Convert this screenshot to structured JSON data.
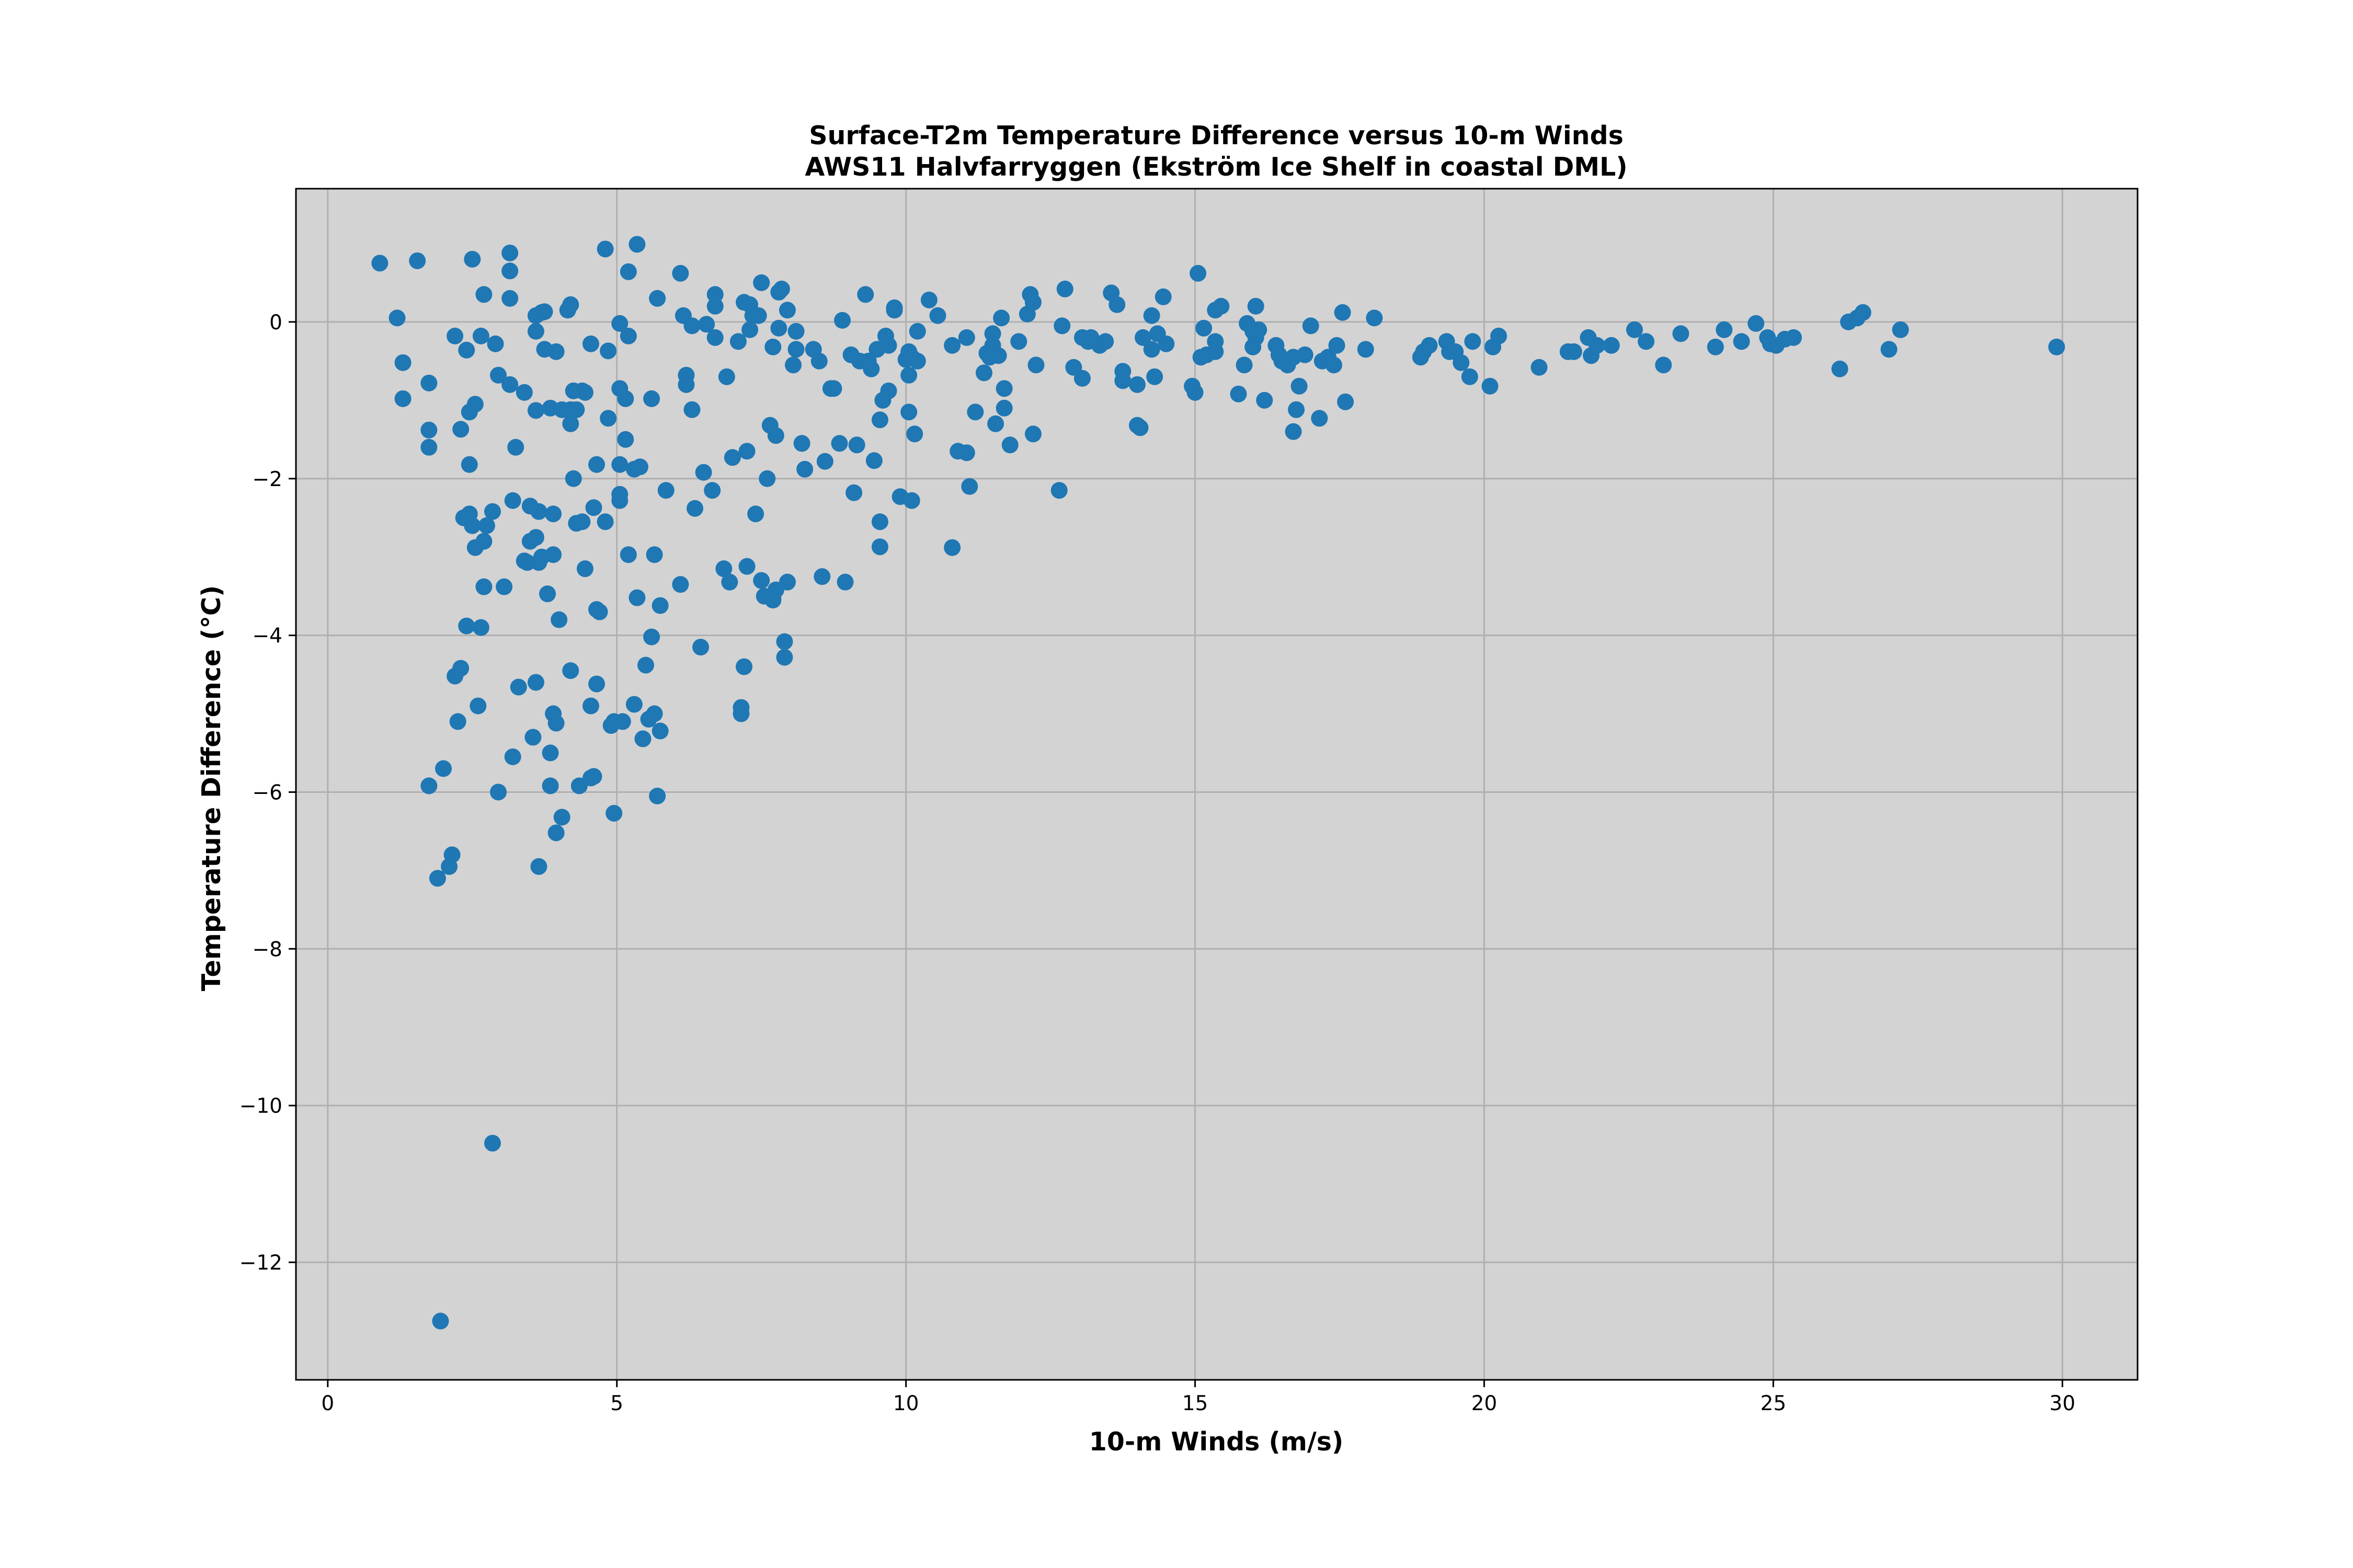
{
  "chart_data": {
    "type": "scatter",
    "title": "Surface-T2m Temperature Difference versus 10-m Winds",
    "subtitle": "AWS11 Halvfarryggen (Ekström Ice Shelf in coastal DML)",
    "xlabel": "10-m Winds (m/s)",
    "ylabel": "Temperature Difference (°C)",
    "xlim": [
      -0.55,
      31.3
    ],
    "ylim": [
      -13.5,
      1.7
    ],
    "xticks": [
      0,
      5,
      10,
      15,
      20,
      25,
      30
    ],
    "yticks": [
      0,
      -2,
      -4,
      -6,
      -8,
      -10,
      -12
    ],
    "xtick_labels": [
      "0",
      "5",
      "10",
      "15",
      "20",
      "25",
      "30"
    ],
    "ytick_labels": [
      "0",
      "−2",
      "−4",
      "−6",
      "−8",
      "−10",
      "−12"
    ],
    "grid": true,
    "colors": {
      "marker": "#1f77b4",
      "plot_background": "#d3d3d3",
      "grid": "#b0b0b0"
    },
    "points": [
      [
        0.9,
        0.75
      ],
      [
        1.2,
        0.05
      ],
      [
        1.3,
        -0.52
      ],
      [
        1.3,
        -0.98
      ],
      [
        1.55,
        0.78
      ],
      [
        1.75,
        -0.78
      ],
      [
        1.75,
        -1.38
      ],
      [
        1.75,
        -1.6
      ],
      [
        1.75,
        -5.92
      ],
      [
        1.9,
        -7.1
      ],
      [
        1.95,
        -12.75
      ],
      [
        2.0,
        -5.7
      ],
      [
        2.1,
        -6.95
      ],
      [
        2.15,
        -6.8
      ],
      [
        2.2,
        -4.52
      ],
      [
        2.2,
        -0.18
      ],
      [
        2.25,
        -5.1
      ],
      [
        2.3,
        -4.42
      ],
      [
        2.3,
        -1.37
      ],
      [
        2.35,
        -2.5
      ],
      [
        2.4,
        -0.36
      ],
      [
        2.4,
        -3.88
      ],
      [
        2.45,
        -1.15
      ],
      [
        2.45,
        -2.45
      ],
      [
        2.45,
        -1.82
      ],
      [
        2.5,
        -2.6
      ],
      [
        2.5,
        0.8
      ],
      [
        2.55,
        -1.05
      ],
      [
        2.55,
        -2.88
      ],
      [
        2.6,
        -4.9
      ],
      [
        2.65,
        -0.18
      ],
      [
        2.65,
        -3.9
      ],
      [
        2.7,
        -2.8
      ],
      [
        2.7,
        0.35
      ],
      [
        2.7,
        -3.38
      ],
      [
        2.75,
        -2.6
      ],
      [
        2.85,
        -2.42
      ],
      [
        2.85,
        -10.48
      ],
      [
        2.9,
        -0.28
      ],
      [
        2.95,
        -6.0
      ],
      [
        2.95,
        -0.68
      ],
      [
        3.05,
        -3.38
      ],
      [
        3.15,
        0.88
      ],
      [
        3.15,
        0.65
      ],
      [
        3.15,
        0.3
      ],
      [
        3.15,
        -0.8
      ],
      [
        3.2,
        -2.28
      ],
      [
        3.2,
        -5.55
      ],
      [
        3.25,
        -1.6
      ],
      [
        3.3,
        -4.66
      ],
      [
        3.4,
        -0.9
      ],
      [
        3.4,
        -3.05
      ],
      [
        3.45,
        -3.07
      ],
      [
        3.5,
        -2.35
      ],
      [
        3.5,
        -2.8
      ],
      [
        3.55,
        -5.3
      ],
      [
        3.6,
        0.08
      ],
      [
        3.6,
        -0.12
      ],
      [
        3.6,
        -2.75
      ],
      [
        3.6,
        -1.13
      ],
      [
        3.6,
        -4.6
      ],
      [
        3.65,
        -2.42
      ],
      [
        3.65,
        -6.95
      ],
      [
        3.65,
        -3.07
      ],
      [
        3.7,
        -3.0
      ],
      [
        3.7,
        0.12
      ],
      [
        3.75,
        0.13
      ],
      [
        3.75,
        -0.35
      ],
      [
        3.8,
        -3.47
      ],
      [
        3.85,
        -1.1
      ],
      [
        3.85,
        -5.92
      ],
      [
        3.85,
        -5.5
      ],
      [
        3.9,
        -2.45
      ],
      [
        3.9,
        -2.97
      ],
      [
        3.9,
        -5.0
      ],
      [
        3.95,
        -5.12
      ],
      [
        3.95,
        -6.52
      ],
      [
        3.95,
        -0.38
      ],
      [
        4.0,
        -3.8
      ],
      [
        4.05,
        -6.32
      ],
      [
        4.05,
        -1.12
      ],
      [
        4.15,
        0.15
      ],
      [
        4.2,
        0.22
      ],
      [
        4.2,
        -1.3
      ],
      [
        4.2,
        -1.12
      ],
      [
        4.2,
        -4.45
      ],
      [
        4.25,
        -2.0
      ],
      [
        4.25,
        -0.88
      ],
      [
        4.3,
        -1.12
      ],
      [
        4.3,
        -2.57
      ],
      [
        4.35,
        -5.92
      ],
      [
        4.4,
        -0.88
      ],
      [
        4.4,
        -2.55
      ],
      [
        4.45,
        -0.9
      ],
      [
        4.45,
        -3.15
      ],
      [
        4.55,
        -0.28
      ],
      [
        4.55,
        -4.9
      ],
      [
        4.55,
        -5.82
      ],
      [
        4.6,
        -2.37
      ],
      [
        4.6,
        -5.8
      ],
      [
        4.65,
        -1.82
      ],
      [
        4.65,
        -4.62
      ],
      [
        4.65,
        -3.67
      ],
      [
        4.7,
        -3.7
      ],
      [
        4.8,
        -2.55
      ],
      [
        4.8,
        0.93
      ],
      [
        4.85,
        -0.37
      ],
      [
        4.85,
        -1.23
      ],
      [
        4.9,
        -5.15
      ],
      [
        4.95,
        -6.27
      ],
      [
        4.95,
        -5.1
      ],
      [
        5.05,
        -0.02
      ],
      [
        5.05,
        -0.85
      ],
      [
        5.05,
        -2.2
      ],
      [
        5.05,
        -1.82
      ],
      [
        5.05,
        -2.28
      ],
      [
        5.1,
        -5.1
      ],
      [
        5.15,
        -1.5
      ],
      [
        5.15,
        -0.98
      ],
      [
        5.2,
        -0.18
      ],
      [
        5.2,
        0.64
      ],
      [
        5.2,
        -2.97
      ],
      [
        5.3,
        -1.88
      ],
      [
        5.3,
        -4.88
      ],
      [
        5.35,
        0.99
      ],
      [
        5.35,
        -3.52
      ],
      [
        5.4,
        -1.85
      ],
      [
        5.45,
        -5.32
      ],
      [
        5.5,
        -4.38
      ],
      [
        5.55,
        -5.07
      ],
      [
        5.6,
        -0.98
      ],
      [
        5.6,
        -4.02
      ],
      [
        5.65,
        -5.0
      ],
      [
        5.65,
        -2.97
      ],
      [
        5.7,
        0.3
      ],
      [
        5.7,
        -6.05
      ],
      [
        5.75,
        -5.22
      ],
      [
        5.75,
        -3.62
      ],
      [
        5.85,
        -2.15
      ],
      [
        6.1,
        0.62
      ],
      [
        6.1,
        -3.35
      ],
      [
        6.15,
        0.08
      ],
      [
        6.2,
        -0.8
      ],
      [
        6.2,
        -0.68
      ],
      [
        6.3,
        -1.12
      ],
      [
        6.3,
        -0.05
      ],
      [
        6.35,
        -2.38
      ],
      [
        6.45,
        -4.15
      ],
      [
        6.5,
        -1.92
      ],
      [
        6.55,
        -0.03
      ],
      [
        6.65,
        -2.15
      ],
      [
        6.7,
        0.35
      ],
      [
        6.7,
        0.2
      ],
      [
        6.7,
        -0.2
      ],
      [
        6.85,
        -3.15
      ],
      [
        6.9,
        -0.7
      ],
      [
        6.95,
        -3.32
      ],
      [
        7.0,
        -1.73
      ],
      [
        7.1,
        -0.25
      ],
      [
        7.15,
        -4.92
      ],
      [
        7.15,
        -5.0
      ],
      [
        7.2,
        0.25
      ],
      [
        7.2,
        -4.4
      ],
      [
        7.25,
        -3.12
      ],
      [
        7.25,
        -1.65
      ],
      [
        7.3,
        0.22
      ],
      [
        7.3,
        -0.1
      ],
      [
        7.35,
        0.08
      ],
      [
        7.4,
        -2.45
      ],
      [
        7.45,
        0.08
      ],
      [
        7.5,
        -3.3
      ],
      [
        7.5,
        0.5
      ],
      [
        7.55,
        -3.5
      ],
      [
        7.6,
        -2.0
      ],
      [
        7.65,
        -1.32
      ],
      [
        7.7,
        -0.32
      ],
      [
        7.7,
        -3.52
      ],
      [
        7.7,
        -3.55
      ],
      [
        7.75,
        -3.42
      ],
      [
        7.75,
        -1.45
      ],
      [
        7.8,
        -0.08
      ],
      [
        7.8,
        0.38
      ],
      [
        7.85,
        0.42
      ],
      [
        7.9,
        -4.08
      ],
      [
        7.9,
        -4.28
      ],
      [
        7.95,
        0.15
      ],
      [
        7.95,
        -3.32
      ],
      [
        8.05,
        -0.55
      ],
      [
        8.1,
        -0.35
      ],
      [
        8.1,
        -0.12
      ],
      [
        8.2,
        -1.55
      ],
      [
        8.25,
        -1.88
      ],
      [
        8.4,
        -0.35
      ],
      [
        8.5,
        -0.5
      ],
      [
        8.55,
        -3.25
      ],
      [
        8.6,
        -1.78
      ],
      [
        8.7,
        -0.85
      ],
      [
        8.75,
        -0.85
      ],
      [
        8.85,
        -1.55
      ],
      [
        8.9,
        0.02
      ],
      [
        8.95,
        -3.32
      ],
      [
        9.05,
        -0.42
      ],
      [
        9.1,
        -2.18
      ],
      [
        9.15,
        -1.57
      ],
      [
        9.2,
        -0.5
      ],
      [
        9.3,
        0.35
      ],
      [
        9.35,
        -0.5
      ],
      [
        9.4,
        -0.6
      ],
      [
        9.45,
        -1.77
      ],
      [
        9.5,
        -0.35
      ],
      [
        9.55,
        -2.55
      ],
      [
        9.55,
        -2.87
      ],
      [
        9.55,
        -1.25
      ],
      [
        9.6,
        -1.0
      ],
      [
        9.65,
        -0.18
      ],
      [
        9.7,
        -0.3
      ],
      [
        9.7,
        -0.88
      ],
      [
        9.8,
        0.18
      ],
      [
        9.8,
        0.15
      ],
      [
        9.9,
        -2.23
      ],
      [
        10.0,
        -0.48
      ],
      [
        10.05,
        -0.38
      ],
      [
        10.05,
        -0.68
      ],
      [
        10.05,
        -1.15
      ],
      [
        10.1,
        -0.45
      ],
      [
        10.1,
        -2.28
      ],
      [
        10.15,
        -1.43
      ],
      [
        10.2,
        -0.5
      ],
      [
        10.2,
        -0.12
      ],
      [
        10.4,
        0.28
      ],
      [
        10.55,
        0.08
      ],
      [
        10.8,
        -0.3
      ],
      [
        10.8,
        -2.88
      ],
      [
        10.9,
        -1.65
      ],
      [
        11.05,
        -0.2
      ],
      [
        11.05,
        -1.67
      ],
      [
        11.1,
        -2.1
      ],
      [
        11.2,
        -1.15
      ],
      [
        11.35,
        -0.65
      ],
      [
        11.4,
        -0.4
      ],
      [
        11.45,
        -0.45
      ],
      [
        11.5,
        -0.3
      ],
      [
        11.5,
        -0.15
      ],
      [
        11.55,
        -1.3
      ],
      [
        11.6,
        -0.43
      ],
      [
        11.65,
        0.05
      ],
      [
        11.7,
        -0.85
      ],
      [
        11.7,
        -1.1
      ],
      [
        11.8,
        -1.57
      ],
      [
        11.95,
        -0.25
      ],
      [
        12.1,
        0.1
      ],
      [
        12.15,
        0.35
      ],
      [
        12.2,
        0.25
      ],
      [
        12.2,
        -1.43
      ],
      [
        12.25,
        -0.55
      ],
      [
        12.65,
        -2.15
      ],
      [
        12.7,
        -0.05
      ],
      [
        12.75,
        0.42
      ],
      [
        12.9,
        -0.58
      ],
      [
        13.05,
        -0.2
      ],
      [
        13.05,
        -0.72
      ],
      [
        13.15,
        -0.25
      ],
      [
        13.2,
        -0.2
      ],
      [
        13.35,
        -0.3
      ],
      [
        13.45,
        -0.25
      ],
      [
        13.55,
        0.37
      ],
      [
        13.65,
        0.22
      ],
      [
        13.75,
        -0.75
      ],
      [
        13.75,
        -0.63
      ],
      [
        14.0,
        -0.8
      ],
      [
        14.0,
        -1.32
      ],
      [
        14.05,
        -1.35
      ],
      [
        14.1,
        -0.2
      ],
      [
        14.25,
        -0.35
      ],
      [
        14.25,
        0.08
      ],
      [
        14.3,
        -0.7
      ],
      [
        14.35,
        -0.15
      ],
      [
        14.45,
        0.32
      ],
      [
        14.5,
        -0.28
      ],
      [
        14.95,
        -0.82
      ],
      [
        15.0,
        -0.9
      ],
      [
        15.05,
        0.62
      ],
      [
        15.1,
        -0.45
      ],
      [
        15.15,
        -0.08
      ],
      [
        15.2,
        -0.42
      ],
      [
        15.35,
        -0.38
      ],
      [
        15.35,
        0.15
      ],
      [
        15.35,
        -0.25
      ],
      [
        15.45,
        0.2
      ],
      [
        15.75,
        -0.92
      ],
      [
        15.85,
        -0.55
      ],
      [
        15.9,
        -0.02
      ],
      [
        16.0,
        -0.12
      ],
      [
        16.0,
        -0.32
      ],
      [
        16.05,
        0.2
      ],
      [
        16.05,
        -0.2
      ],
      [
        16.1,
        -0.1
      ],
      [
        16.2,
        -1.0
      ],
      [
        16.4,
        -0.3
      ],
      [
        16.45,
        -0.42
      ],
      [
        16.5,
        -0.5
      ],
      [
        16.6,
        -0.55
      ],
      [
        16.7,
        -0.45
      ],
      [
        16.7,
        -1.4
      ],
      [
        16.75,
        -1.12
      ],
      [
        16.8,
        -0.82
      ],
      [
        16.9,
        -0.42
      ],
      [
        17.0,
        -0.05
      ],
      [
        17.15,
        -1.23
      ],
      [
        17.2,
        -0.5
      ],
      [
        17.3,
        -0.45
      ],
      [
        17.4,
        -0.55
      ],
      [
        17.45,
        -0.3
      ],
      [
        17.55,
        0.12
      ],
      [
        17.6,
        -1.02
      ],
      [
        17.95,
        -0.35
      ],
      [
        18.1,
        0.05
      ],
      [
        18.9,
        -0.45
      ],
      [
        18.95,
        -0.38
      ],
      [
        19.05,
        -0.3
      ],
      [
        19.35,
        -0.25
      ],
      [
        19.4,
        -0.38
      ],
      [
        19.5,
        -0.38
      ],
      [
        19.6,
        -0.52
      ],
      [
        19.75,
        -0.7
      ],
      [
        19.8,
        -0.25
      ],
      [
        20.1,
        -0.82
      ],
      [
        20.15,
        -0.32
      ],
      [
        20.25,
        -0.18
      ],
      [
        20.95,
        -0.58
      ],
      [
        21.45,
        -0.38
      ],
      [
        21.55,
        -0.38
      ],
      [
        21.8,
        -0.2
      ],
      [
        21.85,
        -0.43
      ],
      [
        21.95,
        -0.3
      ],
      [
        22.2,
        -0.3
      ],
      [
        22.6,
        -0.1
      ],
      [
        22.8,
        -0.25
      ],
      [
        23.1,
        -0.55
      ],
      [
        23.4,
        -0.15
      ],
      [
        24.0,
        -0.32
      ],
      [
        24.15,
        -0.1
      ],
      [
        24.45,
        -0.25
      ],
      [
        24.7,
        -0.02
      ],
      [
        24.9,
        -0.2
      ],
      [
        24.95,
        -0.28
      ],
      [
        25.05,
        -0.3
      ],
      [
        25.2,
        -0.22
      ],
      [
        25.35,
        -0.2
      ],
      [
        26.15,
        -0.6
      ],
      [
        26.3,
        0.0
      ],
      [
        26.45,
        0.05
      ],
      [
        26.55,
        0.12
      ],
      [
        27.0,
        -0.35
      ],
      [
        27.2,
        -0.1
      ],
      [
        29.9,
        -0.32
      ]
    ]
  }
}
